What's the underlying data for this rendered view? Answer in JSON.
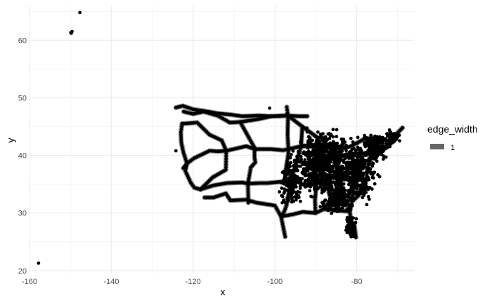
{
  "chart_data": {
    "type": "scatter",
    "title": "",
    "xlabel": "x",
    "ylabel": "y",
    "xlim": [
      -160,
      -66
    ],
    "ylim": [
      19.5,
      66
    ],
    "x_ticks": [
      -160,
      -140,
      -120,
      -100,
      -80
    ],
    "y_ticks": [
      20,
      30,
      40,
      50,
      60
    ],
    "x_tick_labels": [
      "-160",
      "-140",
      "-120",
      "-100",
      "-80"
    ],
    "y_tick_labels": [
      "20",
      "30",
      "40",
      "50",
      "60"
    ],
    "grid": true,
    "legend": {
      "title": "edge_width",
      "position": "right",
      "entries": [
        {
          "label": "1",
          "color": "#666666"
        }
      ]
    },
    "colors": {
      "point": "#000000",
      "edge": "#666666",
      "grid": "#ebebeb"
    },
    "routes": [
      [
        [
          -124.2,
          48.3
        ],
        [
          -122.5,
          48.6
        ],
        [
          -120,
          48.0
        ],
        [
          -117.2,
          47.7
        ],
        [
          -114,
          47.3
        ],
        [
          -111,
          47.1
        ],
        [
          -108,
          46.8
        ],
        [
          -104,
          46.9
        ],
        [
          -100.8,
          46.8
        ],
        [
          -97,
          46.9
        ],
        [
          -94,
          46.8
        ],
        [
          -92.1,
          46.8
        ]
      ],
      [
        [
          -122.3,
          47.6
        ],
        [
          -120,
          47.2
        ],
        [
          -117.4,
          47.6
        ],
        [
          -114,
          46.9
        ],
        [
          -111,
          45.7
        ],
        [
          -108.5,
          45.8
        ],
        [
          -104,
          46.3
        ],
        [
          -100.8,
          46.8
        ],
        [
          -96.8,
          46.9
        ],
        [
          -93.3,
          45.0
        ],
        [
          -89.6,
          43.1
        ],
        [
          -87.9,
          43.0
        ],
        [
          -87.6,
          41.9
        ]
      ],
      [
        [
          -122.7,
          45.5
        ],
        [
          -119,
          45.7
        ],
        [
          -116,
          43.6
        ],
        [
          -113,
          42.6
        ],
        [
          -111.9,
          40.8
        ],
        [
          -107,
          41.6
        ],
        [
          -105,
          41.1
        ],
        [
          -101,
          41.1
        ],
        [
          -98,
          40.9
        ],
        [
          -96,
          41.2
        ],
        [
          -93.6,
          41.6
        ],
        [
          -90.5,
          41.5
        ],
        [
          -87.6,
          41.9
        ],
        [
          -85,
          41.1
        ],
        [
          -81.7,
          41.5
        ],
        [
          -78,
          42.9
        ],
        [
          -76,
          43.0
        ],
        [
          -73.8,
          42.7
        ],
        [
          -71.1,
          42.4
        ]
      ],
      [
        [
          -122.4,
          37.8
        ],
        [
          -121.5,
          38.6
        ],
        [
          -119.8,
          39.5
        ],
        [
          -116,
          40.8
        ],
        [
          -114,
          40.7
        ],
        [
          -111.9,
          40.8
        ]
      ],
      [
        [
          -118.2,
          34.1
        ],
        [
          -115.2,
          36.2
        ],
        [
          -112,
          37.5
        ],
        [
          -111.9,
          40.8
        ]
      ],
      [
        [
          -117.2,
          32.7
        ],
        [
          -115,
          32.7
        ],
        [
          -112,
          33.4
        ],
        [
          -110.9,
          32.2
        ],
        [
          -107,
          32.3
        ],
        [
          -104.5,
          31.8
        ],
        [
          -100,
          31.3
        ],
        [
          -98.5,
          29.4
        ],
        [
          -95.4,
          29.8
        ],
        [
          -93.2,
          30.2
        ],
        [
          -90.1,
          30.0
        ],
        [
          -88,
          30.7
        ],
        [
          -84.3,
          30.4
        ],
        [
          -81.7,
          30.3
        ]
      ],
      [
        [
          -118.2,
          34.1
        ],
        [
          -115,
          34.8
        ],
        [
          -111.7,
          35.2
        ],
        [
          -108,
          35.3
        ],
        [
          -106.6,
          35.1
        ],
        [
          -103.7,
          35.2
        ],
        [
          -101.8,
          35.2
        ],
        [
          -99,
          35.4
        ],
        [
          -97.5,
          35.5
        ],
        [
          -94.4,
          35.4
        ],
        [
          -92.3,
          34.7
        ],
        [
          -90,
          35.1
        ],
        [
          -86.8,
          36.2
        ],
        [
          -84,
          35.9
        ],
        [
          -81,
          36.1
        ],
        [
          -78.6,
          35.8
        ]
      ],
      [
        [
          -106.5,
          31.8
        ],
        [
          -106.6,
          35.1
        ],
        [
          -105.9,
          37.9
        ],
        [
          -104.8,
          38.8
        ],
        [
          -105,
          39.7
        ],
        [
          -105,
          40.6
        ],
        [
          -104.8,
          41.1
        ],
        [
          -106.3,
          43.0
        ],
        [
          -108.5,
          45.8
        ]
      ],
      [
        [
          -97.5,
          35.5
        ],
        [
          -97.3,
          37.7
        ],
        [
          -96.8,
          39.9
        ],
        [
          -96.7,
          40.8
        ],
        [
          -96.9,
          43.5
        ],
        [
          -96.8,
          46.9
        ],
        [
          -97.1,
          48.4
        ]
      ],
      [
        [
          -94.6,
          39.1
        ],
        [
          -92.3,
          38.6
        ],
        [
          -90.2,
          38.6
        ],
        [
          -87.7,
          39.6
        ],
        [
          -86.2,
          39.8
        ],
        [
          -84.5,
          39.8
        ],
        [
          -83.0,
          40.0
        ],
        [
          -80.0,
          40.4
        ],
        [
          -77.0,
          40.3
        ],
        [
          -75.2,
          40.0
        ],
        [
          -74.0,
          40.7
        ],
        [
          -72.7,
          41.8
        ],
        [
          -71.1,
          42.4
        ],
        [
          -70.3,
          43.7
        ],
        [
          -68.8,
          44.8
        ]
      ],
      [
        [
          -80.2,
          25.8
        ],
        [
          -80.6,
          28.0
        ],
        [
          -81.4,
          28.5
        ],
        [
          -81.7,
          30.3
        ],
        [
          -81.1,
          32.1
        ],
        [
          -79.9,
          32.8
        ],
        [
          -78.0,
          34.2
        ],
        [
          -77.4,
          37.5
        ],
        [
          -77.0,
          38.9
        ],
        [
          -76.6,
          39.3
        ],
        [
          -75.2,
          40.0
        ]
      ],
      [
        [
          -84.4,
          33.7
        ],
        [
          -84.5,
          35.5
        ],
        [
          -84.5,
          38.0
        ],
        [
          -84.5,
          39.1
        ],
        [
          -83.7,
          41.7
        ],
        [
          -83.0,
          42.3
        ]
      ],
      [
        [
          -93.3,
          45.0
        ],
        [
          -93.6,
          41.6
        ],
        [
          -94.6,
          39.1
        ],
        [
          -95.9,
          36.2
        ],
        [
          -96.8,
          32.8
        ],
        [
          -97.1,
          31.5
        ],
        [
          -97.7,
          30.3
        ],
        [
          -98.5,
          29.4
        ],
        [
          -97.5,
          25.9
        ]
      ],
      [
        [
          -122.7,
          45.5
        ],
        [
          -123.0,
          44.0
        ],
        [
          -122.9,
          42.3
        ],
        [
          -122.4,
          40.6
        ],
        [
          -121.5,
          38.6
        ],
        [
          -121.9,
          37.3
        ],
        [
          -120.6,
          35.3
        ],
        [
          -119.7,
          34.4
        ],
        [
          -118.2,
          34.1
        ]
      ],
      [
        [
          -89.6,
          43.1
        ],
        [
          -90.2,
          38.6
        ],
        [
          -89.8,
          35.1
        ],
        [
          -90.2,
          32.3
        ],
        [
          -90.1,
          30.0
        ]
      ],
      [
        [
          -86.8,
          36.2
        ],
        [
          -86.8,
          33.5
        ],
        [
          -86.3,
          32.4
        ],
        [
          -88.0,
          30.7
        ]
      ]
    ],
    "clusters": [
      {
        "cx": -88,
        "cy": 38.5,
        "sx": 5.2,
        "sy": 4.4,
        "n": 650
      },
      {
        "cx": -80,
        "cy": 37,
        "sx": 3.6,
        "sy": 3.8,
        "n": 380
      },
      {
        "cx": -75.5,
        "cy": 41.5,
        "sx": 2.4,
        "sy": 1.8,
        "n": 200
      },
      {
        "cx": -96,
        "cy": 35.5,
        "sx": 2.4,
        "sy": 3.6,
        "n": 140
      },
      {
        "cx": -84.5,
        "cy": 32.5,
        "sx": 3.4,
        "sy": 2.1,
        "n": 180
      },
      {
        "cx": -81.5,
        "cy": 27.5,
        "sx": 0.9,
        "sy": 1.4,
        "n": 70
      },
      {
        "cx": -71.5,
        "cy": 43.2,
        "sx": 1.2,
        "sy": 1.0,
        "n": 40
      }
    ],
    "isolated_points": [
      {
        "x": -157.8,
        "y": 21.3
      },
      {
        "x": -149.8,
        "y": 61.2
      },
      {
        "x": -149.9,
        "y": 61.3
      },
      {
        "x": -149.6,
        "y": 61.5
      },
      {
        "x": -147.7,
        "y": 64.8
      },
      {
        "x": -124.2,
        "y": 40.8
      },
      {
        "x": -101.3,
        "y": 48.2
      },
      {
        "x": -97.1,
        "y": 47.2
      }
    ]
  }
}
